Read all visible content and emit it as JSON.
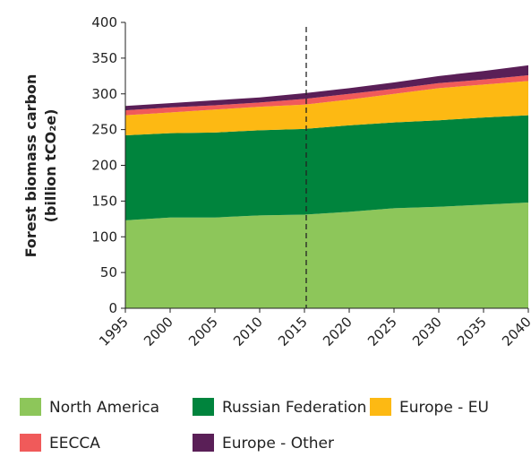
{
  "chart_data": {
    "type": "stacked_area",
    "y_label_lines": [
      "Forest biomass carbon",
      "(billion tCO₂e)"
    ],
    "x": [
      1995,
      2000,
      2005,
      2010,
      2015,
      2020,
      2025,
      2030,
      2035,
      2040
    ],
    "series": [
      {
        "name": "North America",
        "color": "#8dc65a",
        "values": [
          123,
          127,
          127,
          130,
          131,
          135,
          140,
          142,
          145,
          148
        ]
      },
      {
        "name": "Russian Federation",
        "color": "#00843d",
        "values": [
          119,
          118,
          119,
          119,
          120,
          121,
          120,
          121,
          122,
          122
        ]
      },
      {
        "name": "Europe - EU",
        "color": "#fdb913",
        "values": [
          28,
          29,
          32,
          33,
          34,
          36,
          40,
          45,
          46,
          48
        ]
      },
      {
        "name": "EECCA",
        "color": "#f05a5a",
        "values": [
          7,
          7,
          6,
          6,
          8,
          8,
          7,
          7,
          7,
          8
        ]
      },
      {
        "name": "Europe - Other",
        "color": "#5a1f57",
        "values": [
          6,
          6,
          7,
          7,
          8,
          8,
          9,
          10,
          12,
          14
        ]
      }
    ],
    "xlim": [
      1995,
      2040
    ],
    "xticks": [
      1995,
      2000,
      2005,
      2010,
      2015,
      2020,
      2025,
      2030,
      2035,
      2040
    ],
    "ylim": [
      0,
      400
    ],
    "yticks": [
      0,
      50,
      100,
      150,
      200,
      250,
      300,
      350,
      400
    ],
    "vline": 2015.2
  }
}
